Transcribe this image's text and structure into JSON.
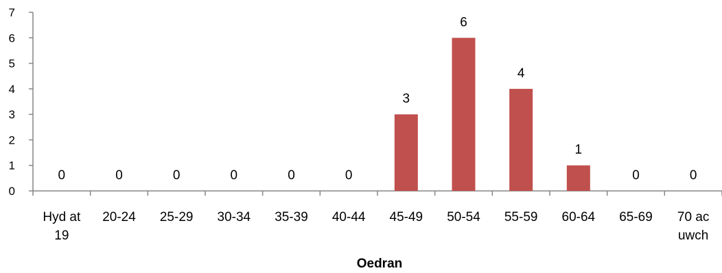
{
  "chart_data": {
    "type": "bar",
    "categories": [
      [
        "Hyd at",
        "19"
      ],
      [
        "20-24"
      ],
      [
        "25-29"
      ],
      [
        "30-34"
      ],
      [
        "35-39"
      ],
      [
        "40-44"
      ],
      [
        "45-49"
      ],
      [
        "50-54"
      ],
      [
        "55-59"
      ],
      [
        "60-64"
      ],
      [
        "65-69"
      ],
      [
        "70 ac",
        "uwch"
      ]
    ],
    "values": [
      0,
      0,
      0,
      0,
      0,
      0,
      3,
      6,
      4,
      1,
      0,
      0
    ],
    "title": "",
    "xlabel": "Oedran",
    "ylabel": "",
    "ylim": [
      0,
      7
    ],
    "yticks": [
      0,
      1,
      2,
      3,
      4,
      5,
      6,
      7
    ],
    "bar_color": "#C0504D",
    "axis_color": "#868686",
    "grid": false,
    "legend": "none",
    "data_labels": true
  }
}
